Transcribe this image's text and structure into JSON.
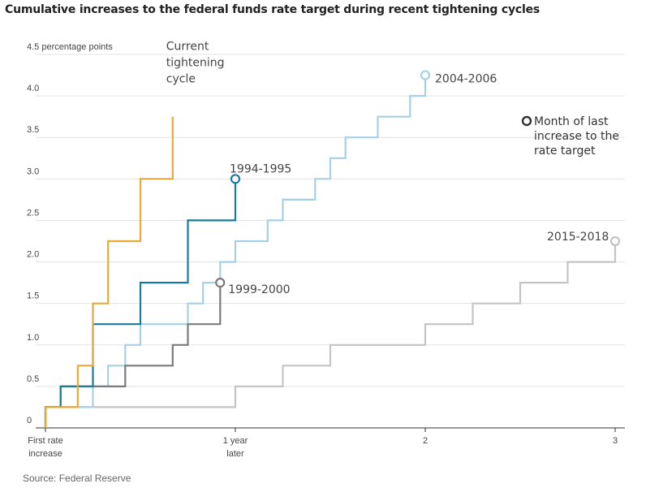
{
  "chart_data": {
    "type": "line",
    "step": true,
    "title": "Cumulative increases to the federal funds rate target during recent tightening cycles",
    "y_unit_label": "percentage points",
    "source": "Source: Federal Reserve",
    "ylim": [
      0,
      4.5
    ],
    "xlim": [
      -0.05,
      3.05
    ],
    "y_ticks": [
      {
        "value": 0,
        "label": "0"
      },
      {
        "value": 0.5,
        "label": "0.5"
      },
      {
        "value": 1.0,
        "label": "1.0"
      },
      {
        "value": 1.5,
        "label": "1.5"
      },
      {
        "value": 2.0,
        "label": "2.0"
      },
      {
        "value": 2.5,
        "label": "2.5"
      },
      {
        "value": 3.0,
        "label": "3.0"
      },
      {
        "value": 3.5,
        "label": "3.5"
      },
      {
        "value": 4.0,
        "label": "4.0"
      },
      {
        "value": 4.5,
        "label": "4.5"
      }
    ],
    "x_ticks": [
      {
        "value": 0,
        "lines": [
          "First rate",
          "increase"
        ]
      },
      {
        "value": 1,
        "lines": [
          "1 year",
          "later"
        ]
      },
      {
        "value": 2,
        "lines": [
          "2"
        ]
      },
      {
        "value": 3,
        "lines": [
          "3"
        ]
      }
    ],
    "grid": "horizontal",
    "legend": {
      "text_lines": [
        "Month of last",
        "increase to the",
        "rate target"
      ],
      "placement": "top-right"
    },
    "series": [
      {
        "name": "2015-2018",
        "color": "#c4c4c4",
        "label_lines": [
          "2015-2018"
        ],
        "end_marker": true,
        "points": [
          [
            0,
            0
          ],
          [
            0,
            0.25
          ],
          [
            1,
            0.25
          ],
          [
            1,
            0.5
          ],
          [
            1.25,
            0.5
          ],
          [
            1.25,
            0.75
          ],
          [
            1.5,
            0.75
          ],
          [
            1.5,
            1.0
          ],
          [
            2,
            1.0
          ],
          [
            2,
            1.25
          ],
          [
            2.25,
            1.25
          ],
          [
            2.25,
            1.5
          ],
          [
            2.5,
            1.5
          ],
          [
            2.5,
            1.75
          ],
          [
            2.75,
            1.75
          ],
          [
            2.75,
            2.0
          ],
          [
            3,
            2.0
          ],
          [
            3,
            2.25
          ]
        ]
      },
      {
        "name": "2004-2006",
        "color": "#a6d0e4",
        "label_lines": [
          "2004-2006"
        ],
        "end_marker": true,
        "points": [
          [
            0,
            0
          ],
          [
            0,
            0.25
          ],
          [
            0.25,
            0.25
          ],
          [
            0.25,
            0.5
          ],
          [
            0.33,
            0.5
          ],
          [
            0.33,
            0.75
          ],
          [
            0.42,
            0.75
          ],
          [
            0.42,
            1.0
          ],
          [
            0.5,
            1.0
          ],
          [
            0.5,
            1.25
          ],
          [
            0.75,
            1.25
          ],
          [
            0.75,
            1.5
          ],
          [
            0.83,
            1.5
          ],
          [
            0.83,
            1.75
          ],
          [
            0.92,
            1.75
          ],
          [
            0.92,
            2.0
          ],
          [
            1,
            2.0
          ],
          [
            1,
            2.25
          ],
          [
            1.17,
            2.25
          ],
          [
            1.17,
            2.5
          ],
          [
            1.25,
            2.5
          ],
          [
            1.25,
            2.75
          ],
          [
            1.42,
            2.75
          ],
          [
            1.42,
            3.0
          ],
          [
            1.5,
            3.0
          ],
          [
            1.5,
            3.25
          ],
          [
            1.58,
            3.25
          ],
          [
            1.58,
            3.5
          ],
          [
            1.75,
            3.5
          ],
          [
            1.75,
            3.75
          ],
          [
            1.92,
            3.75
          ],
          [
            1.92,
            4.0
          ],
          [
            2,
            4.0
          ],
          [
            2,
            4.25
          ]
        ]
      },
      {
        "name": "1999-2000",
        "color": "#7a7a7a",
        "label_lines": [
          "1999-2000"
        ],
        "end_marker": true,
        "points": [
          [
            0,
            0
          ],
          [
            0,
            0.25
          ],
          [
            0.08,
            0.25
          ],
          [
            0.08,
            0.5
          ],
          [
            0.42,
            0.5
          ],
          [
            0.42,
            0.75
          ],
          [
            0.67,
            0.75
          ],
          [
            0.67,
            1.0
          ],
          [
            0.75,
            1.0
          ],
          [
            0.75,
            1.25
          ],
          [
            0.92,
            1.25
          ],
          [
            0.92,
            1.75
          ]
        ]
      },
      {
        "name": "1994-1995",
        "color": "#1d7a9c",
        "label_lines": [
          "1994-1995"
        ],
        "end_marker": true,
        "points": [
          [
            0,
            0
          ],
          [
            0,
            0.25
          ],
          [
            0.08,
            0.25
          ],
          [
            0.08,
            0.5
          ],
          [
            0.25,
            0.5
          ],
          [
            0.25,
            1.25
          ],
          [
            0.5,
            1.25
          ],
          [
            0.5,
            1.75
          ],
          [
            0.75,
            1.75
          ],
          [
            0.75,
            2.5
          ],
          [
            1,
            2.5
          ],
          [
            1,
            3.0
          ]
        ]
      },
      {
        "name": "Current tightening cycle",
        "color": "#e8a83a",
        "label_lines": [
          "Current",
          "tightening",
          "cycle"
        ],
        "end_marker": false,
        "points": [
          [
            0,
            0
          ],
          [
            0,
            0.25
          ],
          [
            0.17,
            0.25
          ],
          [
            0.17,
            0.75
          ],
          [
            0.25,
            0.75
          ],
          [
            0.25,
            1.5
          ],
          [
            0.33,
            1.5
          ],
          [
            0.33,
            2.25
          ],
          [
            0.5,
            2.25
          ],
          [
            0.5,
            3.0
          ],
          [
            0.67,
            3.0
          ],
          [
            0.67,
            3.75
          ]
        ]
      }
    ]
  }
}
